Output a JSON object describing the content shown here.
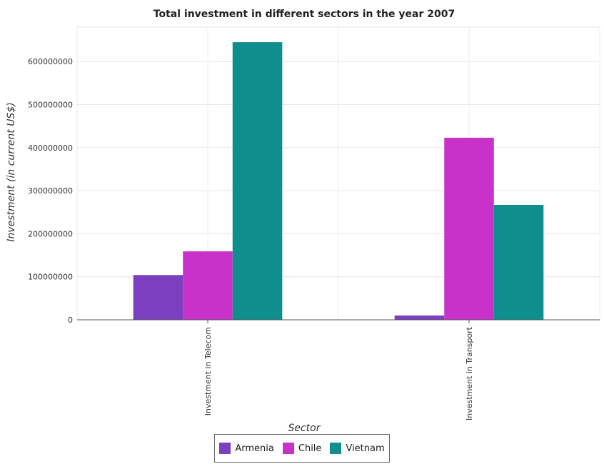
{
  "chart_data": {
    "type": "bar",
    "title": "Total investment in different sectors in the year 2007",
    "xlabel": "Sector",
    "ylabel": "Investment (in current US$)",
    "categories": [
      "Investment in Telecom",
      "Investment in Transport"
    ],
    "series": [
      {
        "name": "Armenia",
        "color": "#7b3fbf",
        "values": [
          104000000,
          10000000
        ]
      },
      {
        "name": "Chile",
        "color": "#c832c8",
        "values": [
          159000000,
          423000000
        ]
      },
      {
        "name": "Vietnam",
        "color": "#0f8e8e",
        "values": [
          645000000,
          267000000
        ]
      }
    ],
    "ylim": [
      0,
      680000000
    ],
    "yticks": [
      0,
      100000000,
      200000000,
      300000000,
      400000000,
      500000000,
      600000000
    ],
    "ytick_labels": [
      "0",
      "100000000",
      "200000000",
      "300000000",
      "400000000",
      "500000000",
      "600000000"
    ],
    "grid": true,
    "legend_position": "bottom-center"
  }
}
